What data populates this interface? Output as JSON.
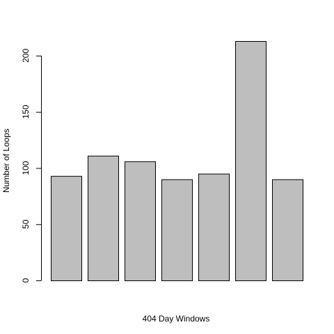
{
  "chart_data": {
    "type": "bar",
    "title": "",
    "xlabel": "404 Day Windows",
    "ylabel": "Number of Loops",
    "categories": [
      "",
      "",
      "",
      "",
      "",
      "",
      ""
    ],
    "values": [
      93,
      111,
      106,
      90,
      95,
      213,
      90
    ],
    "ylim": [
      0,
      213
    ],
    "yticks": [
      0,
      50,
      100,
      150,
      200
    ],
    "grid": false,
    "legend": "none",
    "bar_fill": "#bebebe",
    "bar_stroke": "#000000"
  }
}
